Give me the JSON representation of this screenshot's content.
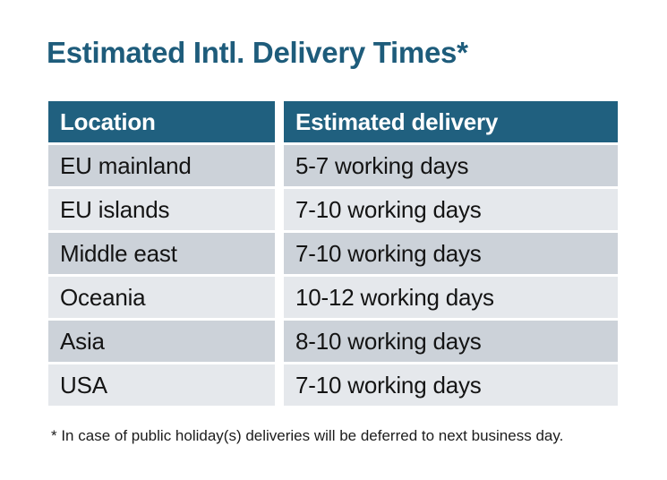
{
  "page": {
    "title": "Estimated Intl. Delivery Times*",
    "footnote": "* In case of public holiday(s) deliveries will be deferred to next business day."
  },
  "table": {
    "headers": [
      "Location",
      "Estimated delivery"
    ],
    "rows": [
      {
        "location": "EU mainland",
        "delivery": "5-7 working days"
      },
      {
        "location": "EU islands",
        "delivery": "7-10 working days"
      },
      {
        "location": "Middle east",
        "delivery": "7-10 working days"
      },
      {
        "location": "Oceania",
        "delivery": "10-12 working days"
      },
      {
        "location": "Asia",
        "delivery": "8-10 working days"
      },
      {
        "location": "USA",
        "delivery": "7-10 working days"
      }
    ]
  },
  "chart_data": {
    "type": "table",
    "title": "Estimated Intl. Delivery Times*",
    "columns": [
      "Location",
      "Estimated delivery"
    ],
    "rows": [
      [
        "EU mainland",
        "5-7 working days"
      ],
      [
        "EU islands",
        "7-10 working days"
      ],
      [
        "Middle east",
        "7-10 working days"
      ],
      [
        "Oceania",
        "10-12 working days"
      ],
      [
        "Asia",
        "8-10 working days"
      ],
      [
        "USA",
        "7-10 working days"
      ]
    ],
    "footnote": "* In case of public holiday(s) deliveries will be deferred to next business day."
  },
  "colors": {
    "title_text": "#1e5c7b",
    "header_bg": "#20607f",
    "header_text": "#ffffff",
    "row_odd_bg": "#ccd2d9",
    "row_even_bg": "#e5e8ec",
    "body_text": "#141414",
    "page_bg": "#ffffff"
  }
}
